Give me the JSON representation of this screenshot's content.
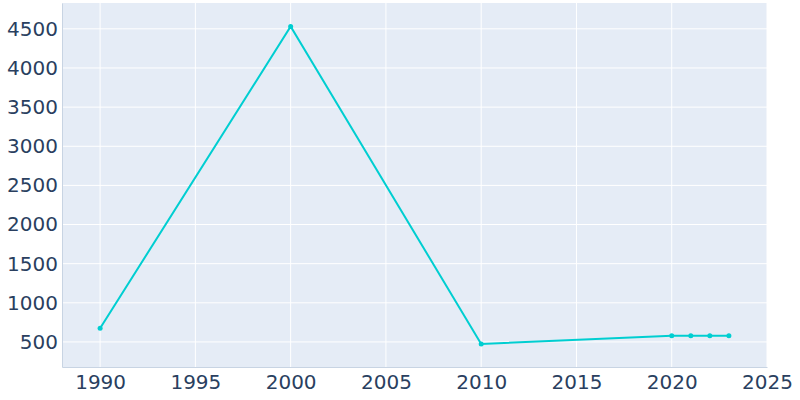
{
  "chart_data": {
    "type": "line",
    "x": [
      1990,
      2000,
      2010,
      2020,
      2021,
      2022,
      2023
    ],
    "values": [
      675,
      4530,
      475,
      578,
      578,
      578,
      580
    ],
    "color": "#00ced1",
    "marker": "circle",
    "xlim": [
      1988,
      2025
    ],
    "xticks": [
      1990,
      1995,
      2000,
      2005,
      2010,
      2015,
      2020,
      2025
    ],
    "ylim": [
      180,
      4830
    ],
    "yticks": [
      500,
      1000,
      1500,
      2000,
      2500,
      3000,
      3500,
      4000,
      4500
    ],
    "grid": true
  }
}
